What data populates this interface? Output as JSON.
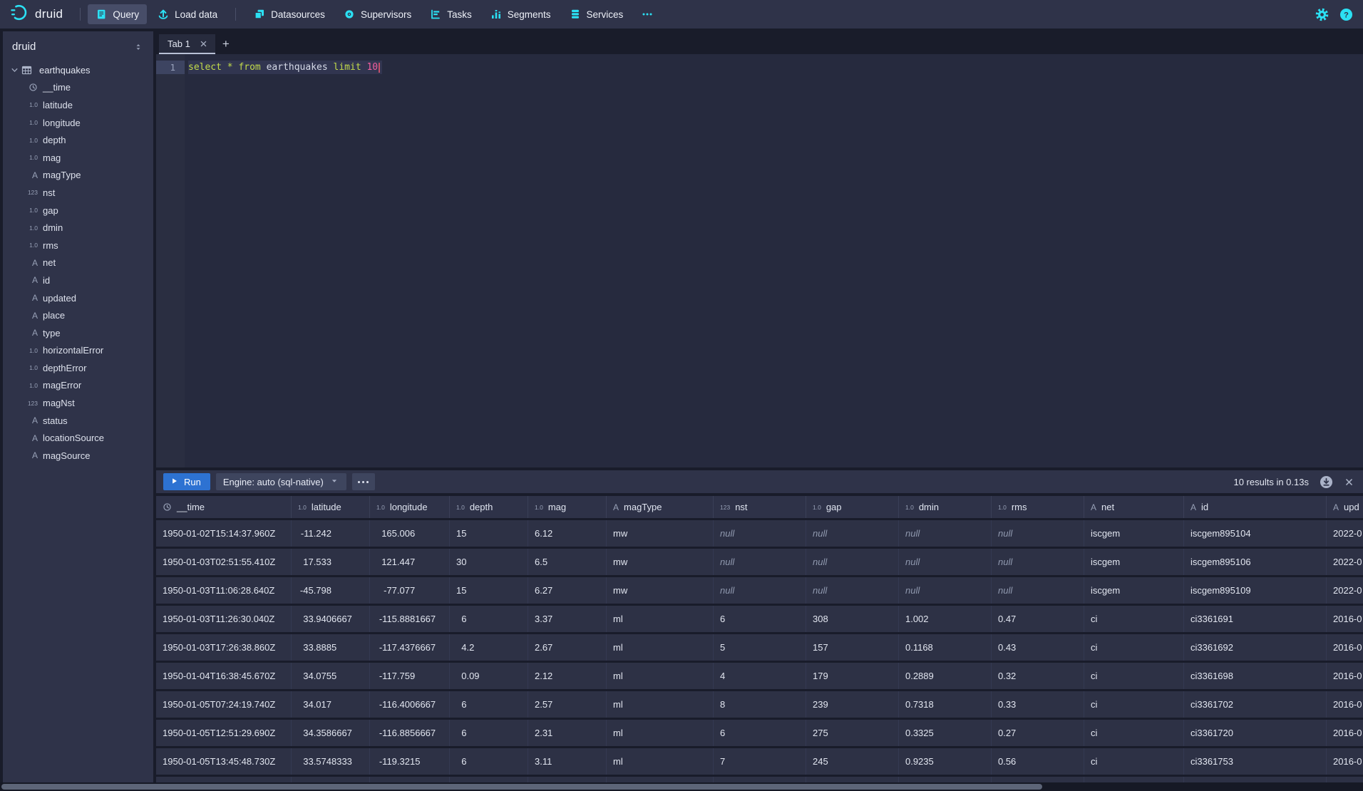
{
  "colors": {
    "accent_cyan": "#2be0f3",
    "primary_blue": "#2d72d2",
    "panel": "#2f3349",
    "editor_bg": "#262a3e",
    "keyword_green": "#c3dc4a",
    "number_pink": "#f25fa0"
  },
  "nav": {
    "brand": "druid",
    "items": [
      {
        "label": "Query",
        "icon": "query-icon",
        "active": true
      },
      {
        "label": "Load data",
        "icon": "load-data-icon",
        "divider_after": true
      },
      {
        "label": "Datasources",
        "icon": "datasources-icon"
      },
      {
        "label": "Supervisors",
        "icon": "supervisors-icon"
      },
      {
        "label": "Tasks",
        "icon": "tasks-icon"
      },
      {
        "label": "Segments",
        "icon": "segments-icon"
      },
      {
        "label": "Services",
        "icon": "services-icon"
      },
      {
        "label": "",
        "icon": "more-icon"
      }
    ]
  },
  "sidebar": {
    "title": "druid",
    "datasource": {
      "name": "earthquakes"
    },
    "columns": [
      {
        "name": "__time",
        "type": "time"
      },
      {
        "name": "latitude",
        "type": "float"
      },
      {
        "name": "longitude",
        "type": "float"
      },
      {
        "name": "depth",
        "type": "float"
      },
      {
        "name": "mag",
        "type": "float"
      },
      {
        "name": "magType",
        "type": "string"
      },
      {
        "name": "nst",
        "type": "long"
      },
      {
        "name": "gap",
        "type": "float"
      },
      {
        "name": "dmin",
        "type": "float"
      },
      {
        "name": "rms",
        "type": "float"
      },
      {
        "name": "net",
        "type": "string"
      },
      {
        "name": "id",
        "type": "string"
      },
      {
        "name": "updated",
        "type": "string"
      },
      {
        "name": "place",
        "type": "string"
      },
      {
        "name": "type",
        "type": "string"
      },
      {
        "name": "horizontalError",
        "type": "float"
      },
      {
        "name": "depthError",
        "type": "float"
      },
      {
        "name": "magError",
        "type": "float"
      },
      {
        "name": "magNst",
        "type": "long"
      },
      {
        "name": "status",
        "type": "string"
      },
      {
        "name": "locationSource",
        "type": "string"
      },
      {
        "name": "magSource",
        "type": "string"
      }
    ]
  },
  "tabs": {
    "items": [
      {
        "label": "Tab 1",
        "active": true
      }
    ],
    "add_label": "+"
  },
  "editor": {
    "line_number": "1",
    "tokens": [
      {
        "text": "select",
        "type": "keyword"
      },
      {
        "text": " ",
        "type": "plain"
      },
      {
        "text": "*",
        "type": "operator"
      },
      {
        "text": " ",
        "type": "plain"
      },
      {
        "text": "from",
        "type": "keyword"
      },
      {
        "text": " ",
        "type": "plain"
      },
      {
        "text": "earthquakes",
        "type": "plain"
      },
      {
        "text": " ",
        "type": "plain"
      },
      {
        "text": "limit",
        "type": "keyword"
      },
      {
        "text": " ",
        "type": "plain"
      },
      {
        "text": "10",
        "type": "number"
      }
    ]
  },
  "runbar": {
    "run_label": "Run",
    "engine_label": "Engine: auto (sql-native)",
    "results_text": "10 results in 0.13s"
  },
  "results": {
    "columns": [
      {
        "name": "__time",
        "type": "time"
      },
      {
        "name": "latitude",
        "type": "float"
      },
      {
        "name": "longitude",
        "type": "float"
      },
      {
        "name": "depth",
        "type": "float"
      },
      {
        "name": "mag",
        "type": "float"
      },
      {
        "name": "magType",
        "type": "string"
      },
      {
        "name": "nst",
        "type": "long"
      },
      {
        "name": "gap",
        "type": "float"
      },
      {
        "name": "dmin",
        "type": "float"
      },
      {
        "name": "rms",
        "type": "float"
      },
      {
        "name": "net",
        "type": "string"
      },
      {
        "name": "id",
        "type": "string"
      },
      {
        "name": "upd",
        "type": "string"
      }
    ],
    "rows": [
      [
        "1950-01-02T15:14:37.960Z",
        "-11.242",
        "165.006",
        "15",
        "6.12",
        "mw",
        null,
        null,
        null,
        null,
        "iscgem",
        "iscgem895104",
        "2022-0"
      ],
      [
        "1950-01-03T02:51:55.410Z",
        "17.533",
        "121.447",
        "30",
        "6.5",
        "mw",
        null,
        null,
        null,
        null,
        "iscgem",
        "iscgem895106",
        "2022-0"
      ],
      [
        "1950-01-03T11:06:28.640Z",
        "-45.798",
        "-77.077",
        "15",
        "6.27",
        "mw",
        null,
        null,
        null,
        null,
        "iscgem",
        "iscgem895109",
        "2022-0"
      ],
      [
        "1950-01-03T11:26:30.040Z",
        "33.9406667",
        "-115.8881667",
        "6",
        "3.37",
        "ml",
        "6",
        "308",
        "1.002",
        "0.47",
        "ci",
        "ci3361691",
        "2016-0"
      ],
      [
        "1950-01-03T17:26:38.860Z",
        "33.8885",
        "-117.4376667",
        "4.2",
        "2.67",
        "ml",
        "5",
        "157",
        "0.1168",
        "0.43",
        "ci",
        "ci3361692",
        "2016-0"
      ],
      [
        "1950-01-04T16:38:45.670Z",
        "34.0755",
        "-117.759",
        "0.09",
        "2.12",
        "ml",
        "4",
        "179",
        "0.2889",
        "0.32",
        "ci",
        "ci3361698",
        "2016-0"
      ],
      [
        "1950-01-05T07:24:19.740Z",
        "34.017",
        "-116.4006667",
        "6",
        "2.57",
        "ml",
        "8",
        "239",
        "0.7318",
        "0.33",
        "ci",
        "ci3361702",
        "2016-0"
      ],
      [
        "1950-01-05T12:51:29.690Z",
        "34.3586667",
        "-116.8856667",
        "6",
        "2.31",
        "ml",
        "6",
        "275",
        "0.3325",
        "0.27",
        "ci",
        "ci3361720",
        "2016-0"
      ],
      [
        "1950-01-05T13:45:48.730Z",
        "33.5748333",
        "-119.3215",
        "6",
        "3.11",
        "ml",
        "7",
        "245",
        "0.9235",
        "0.56",
        "ci",
        "ci3361753",
        "2016-0"
      ]
    ],
    "partial_row_visible": true
  }
}
